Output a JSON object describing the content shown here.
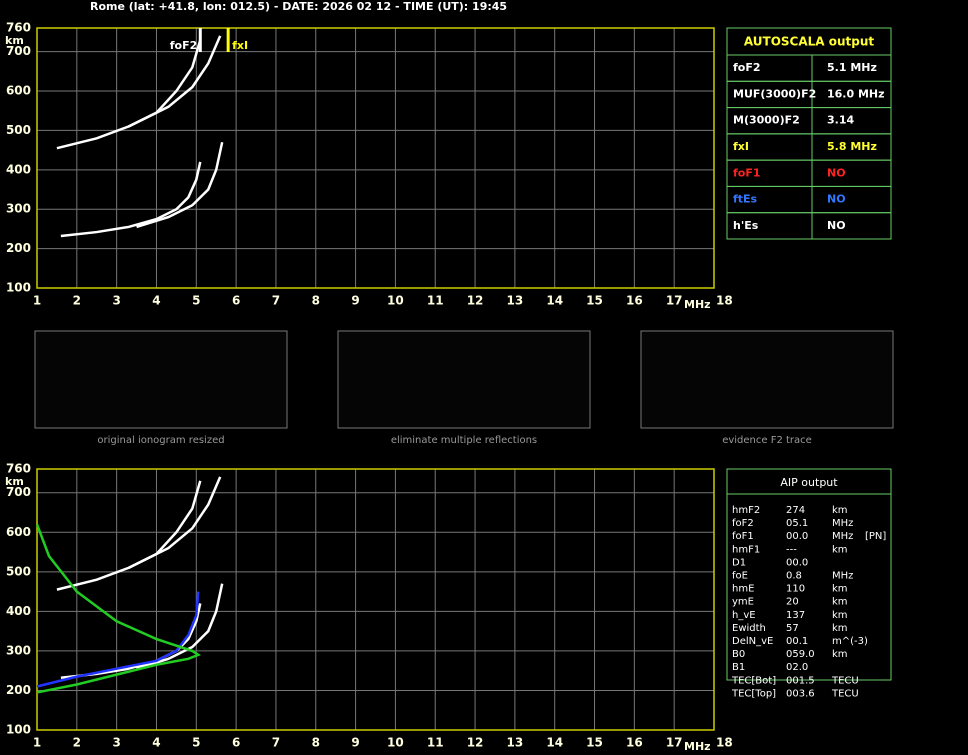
{
  "header": {
    "title": "Rome (lat: +41.8, lon: 012.5) - DATE: 2026 02 12 - TIME (UT): 19:45"
  },
  "chart_data": [
    {
      "type": "line",
      "x_label": "MHz",
      "y_label": "km",
      "xlim": [
        1,
        18
      ],
      "xticks": [
        1,
        2,
        3,
        4,
        5,
        6,
        7,
        8,
        9,
        10,
        11,
        12,
        13,
        14,
        15,
        16,
        17,
        18
      ],
      "ylim": [
        100,
        760
      ],
      "yticks": [
        100,
        200,
        300,
        400,
        500,
        600,
        700,
        760
      ],
      "grid": true,
      "markers": [
        {
          "label": "foF2",
          "x": 5.1,
          "color": "#ffffff"
        },
        {
          "label": "fxI",
          "x": 5.8,
          "color": "#ffff00"
        }
      ],
      "series": [
        {
          "color": "#ffffff",
          "x": [
            1.6,
            2.5,
            3.3,
            4.0,
            4.5,
            4.8,
            5.0,
            5.1
          ],
          "values": [
            232,
            242,
            255,
            275,
            300,
            330,
            375,
            420
          ]
        },
        {
          "color": "#ffffff",
          "x": [
            3.5,
            4.3,
            4.9,
            5.3,
            5.5,
            5.65
          ],
          "values": [
            255,
            280,
            310,
            350,
            400,
            470
          ]
        },
        {
          "color": "#ffffff",
          "x": [
            1.5,
            2.5,
            3.3,
            4.0,
            4.5,
            4.9,
            5.1
          ],
          "values": [
            455,
            480,
            510,
            545,
            600,
            660,
            730
          ]
        },
        {
          "color": "#ffffff",
          "x": [
            3.3,
            4.3,
            4.9,
            5.3,
            5.6
          ],
          "values": [
            510,
            560,
            610,
            670,
            740
          ]
        }
      ]
    },
    {
      "type": "line",
      "x_label": "MHz",
      "y_label": "km",
      "xlim": [
        1,
        18
      ],
      "xticks": [
        1,
        2,
        3,
        4,
        5,
        6,
        7,
        8,
        9,
        10,
        11,
        12,
        13,
        14,
        15,
        16,
        17,
        18
      ],
      "ylim": [
        100,
        760
      ],
      "yticks": [
        100,
        200,
        300,
        400,
        500,
        600,
        700,
        760
      ],
      "grid": true,
      "series": [
        {
          "color": "#ffffff",
          "x": [
            1.6,
            2.5,
            3.3,
            4.0,
            4.5,
            4.8,
            5.0,
            5.1
          ],
          "values": [
            232,
            242,
            255,
            275,
            300,
            330,
            375,
            420
          ]
        },
        {
          "color": "#ffffff",
          "x": [
            3.5,
            4.3,
            4.9,
            5.3,
            5.5,
            5.65
          ],
          "values": [
            255,
            280,
            310,
            350,
            400,
            470
          ]
        },
        {
          "color": "#ffffff",
          "x": [
            1.5,
            2.5,
            3.3,
            4.0,
            4.5,
            4.9,
            5.1
          ],
          "values": [
            455,
            480,
            510,
            545,
            600,
            660,
            730
          ]
        },
        {
          "color": "#ffffff",
          "x": [
            3.3,
            4.3,
            4.9,
            5.3,
            5.6
          ],
          "values": [
            510,
            560,
            610,
            670,
            740
          ]
        },
        {
          "color": "#2233ff",
          "x": [
            1.0,
            2.0,
            3.0,
            4.0,
            4.5,
            4.8,
            5.0,
            5.05
          ],
          "values": [
            210,
            235,
            255,
            275,
            300,
            340,
            390,
            450
          ]
        },
        {
          "color": "#22cc22",
          "x": [
            1.0,
            2.0,
            3.0,
            4.0,
            4.8,
            5.05,
            4.9,
            4.0,
            3.0,
            2.0,
            1.3,
            1.0
          ],
          "values": [
            195,
            215,
            240,
            265,
            280,
            290,
            300,
            330,
            375,
            450,
            540,
            620
          ]
        }
      ]
    }
  ],
  "autoscala": {
    "title": "AUTOSCALA output",
    "rows": [
      {
        "label": "foF2",
        "value": "5.1 MHz",
        "color": "#ffffff"
      },
      {
        "label": "MUF(3000)F2",
        "value": "16.0 MHz",
        "color": "#ffffff"
      },
      {
        "label": "M(3000)F2",
        "value": "3.14",
        "color": "#ffffff"
      },
      {
        "label": "fxI",
        "value": "5.8 MHz",
        "color": "#ffff33"
      },
      {
        "label": "foF1",
        "value": "NO",
        "color": "#ff2222"
      },
      {
        "label": "ftEs",
        "value": "NO",
        "color": "#3377ff"
      },
      {
        "label": "h'Es",
        "value": "NO",
        "color": "#ffffff"
      }
    ]
  },
  "thumbnails": [
    {
      "caption": "original ionogram resized"
    },
    {
      "caption": "eliminate multiple reflections"
    },
    {
      "caption": "evidence F2 trace"
    }
  ],
  "aip": {
    "title": "AIP output",
    "rows": [
      [
        "hmF2",
        "274",
        "km"
      ],
      [
        "foF2",
        "05.1",
        "MHz"
      ],
      [
        "foF1",
        "00.0",
        "MHz",
        "[PN]"
      ],
      [
        "hmF1",
        "---",
        "km"
      ],
      [
        "D1",
        "00.0"
      ],
      [
        "foE",
        "0.8",
        "MHz"
      ],
      [
        "hmE",
        "110",
        "km"
      ],
      [
        "ymE",
        "20",
        "km"
      ],
      [
        "h_vE",
        "137",
        "km"
      ],
      [
        "Ewidth",
        "57",
        "km"
      ],
      [
        "DelN_vE",
        "00.1",
        "m^(-3)"
      ],
      [
        "B0",
        "059.0",
        "km"
      ],
      [
        "B1",
        "02.0"
      ],
      [
        "TEC[Bot]",
        "001.5",
        "TECU"
      ],
      [
        "TEC[Top]",
        "003.6",
        "TECU"
      ]
    ]
  }
}
